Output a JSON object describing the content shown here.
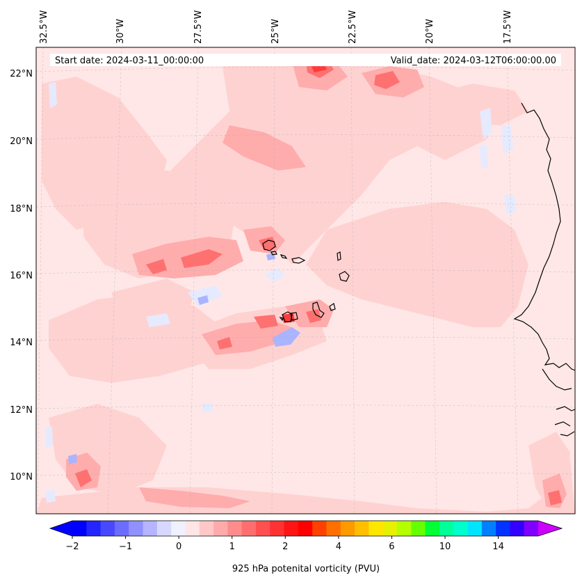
{
  "map": {
    "start_label": "Start date: 2024-03-11_00:00:00",
    "valid_label": "Valid_date: 2024-03-12T06:00:00.00",
    "lon_ticks": [
      "32.5°W",
      "30°W",
      "27.5°W",
      "25°W",
      "22.5°W",
      "20°W",
      "17.5°W"
    ],
    "lat_ticks": [
      "22°N",
      "20°N",
      "18°N",
      "16°N",
      "14°N",
      "12°N",
      "10°N"
    ]
  },
  "colorbar": {
    "label": "925 hPa potenital vorticity (PVU)",
    "tick_labels": [
      "−2",
      "−1",
      "0",
      "1",
      "2",
      "4",
      "6",
      "10",
      "14"
    ],
    "colors": [
      "#0000ff",
      "#2424ff",
      "#4848ff",
      "#6c6cff",
      "#9090ff",
      "#b4b4ff",
      "#d8d8ff",
      "#f0f0ff",
      "#ffe6e6",
      "#ffc8c8",
      "#ffaaaa",
      "#ff8c8c",
      "#ff6e6e",
      "#ff5050",
      "#ff3232",
      "#ff1414",
      "#ff0000",
      "#ff4000",
      "#ff7000",
      "#ff9900",
      "#ffbf00",
      "#ffe600",
      "#e6f000",
      "#b3ff00",
      "#66ff00",
      "#00ff33",
      "#00ff99",
      "#00ffcc",
      "#00e5ff",
      "#0080ff",
      "#0033ff",
      "#3300ff",
      "#8000ff"
    ],
    "under_color": "#0000ff",
    "over_color": "#cc00ff"
  },
  "colors": {
    "background": "#ffe7e7",
    "weak_positive": "#ffd0d0",
    "moderate_positive": "#ffaaaa",
    "strong_positive": "#ff6e6e",
    "negative": "#e8ebff",
    "coastline": "#000000"
  }
}
